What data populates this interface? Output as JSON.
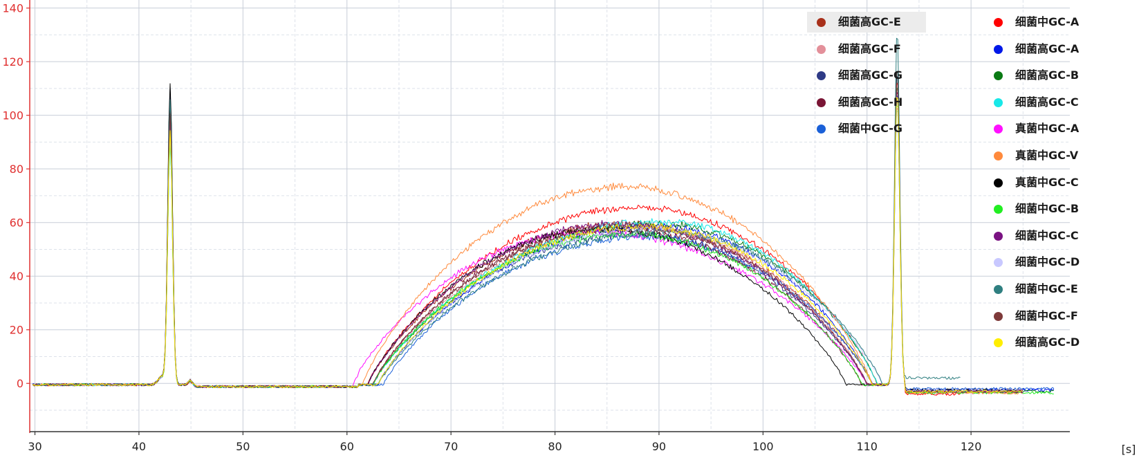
{
  "chart_data": {
    "type": "line",
    "xlabel": "[s]",
    "ylabel": "",
    "xlim": [
      29.5,
      129.5
    ],
    "ylim": [
      -18,
      143
    ],
    "x_ticks": [
      30,
      40,
      50,
      60,
      70,
      80,
      90,
      100,
      110,
      120
    ],
    "y_ticks": [
      0,
      20,
      40,
      60,
      80,
      100,
      120,
      140
    ],
    "grid": true,
    "legend_position": "top-right",
    "colors": {
      "y_axis": "#e03030",
      "x_axis": "#333333",
      "grid_major": "#c7cdd8",
      "grid_minor": "#dde2ea"
    },
    "series": [
      {
        "name": "细菌高GC-E",
        "color": "#a8301a",
        "peak1": 98,
        "peak2": 112,
        "plateau": 60,
        "center": 86.5,
        "onset": 62.0,
        "end": 110.5,
        "post": -3.0,
        "post_end": 125
      },
      {
        "name": "细菌高GC-F",
        "color": "#e3909a",
        "peak1": 95,
        "peak2": 110,
        "plateau": 59,
        "center": 88.0,
        "onset": 62.5,
        "end": 110.0,
        "post": -3.5,
        "post_end": 125
      },
      {
        "name": "细菌高GC-G",
        "color": "#2e3a86",
        "peak1": 110,
        "peak2": 118,
        "plateau": 56,
        "center": 87.5,
        "onset": 63.0,
        "end": 110.0,
        "post": -2.5,
        "post_end": 125
      },
      {
        "name": "细菌高GC-H",
        "color": "#7a1535",
        "peak1": 104,
        "peak2": 113,
        "plateau": 58,
        "center": 86.0,
        "onset": 62.5,
        "end": 109.5,
        "post": -3.0,
        "post_end": 125
      },
      {
        "name": "细菌中GC-G",
        "color": "#1a60d8",
        "peak1": 100,
        "peak2": 108,
        "plateau": 55,
        "center": 88.5,
        "onset": 63.5,
        "end": 110.5,
        "post": -2.0,
        "post_end": 128
      },
      {
        "name": "细菌中GC-A",
        "color": "#ff0000",
        "peak1": 103,
        "peak2": 115,
        "plateau": 66,
        "center": 88.0,
        "onset": 62.0,
        "end": 111.0,
        "post": -4.0,
        "post_end": 119
      },
      {
        "name": "细菌高GC-A",
        "color": "#0018e8",
        "peak1": 96,
        "peak2": 111,
        "plateau": 59,
        "center": 89.5,
        "onset": 63.0,
        "end": 110.5,
        "post": -2.5,
        "post_end": 128
      },
      {
        "name": "细菌高GC-B",
        "color": "#0a7a14",
        "peak1": 92,
        "peak2": 114,
        "plateau": 60,
        "center": 90.0,
        "onset": 62.5,
        "end": 111.0,
        "post": -3.0,
        "post_end": 128
      },
      {
        "name": "细菌高GC-C",
        "color": "#18e8e8",
        "peak1": 90,
        "peak2": 105,
        "plateau": 61,
        "center": 90.0,
        "onset": 62.5,
        "end": 111.0,
        "post": -3.0,
        "post_end": 125
      },
      {
        "name": "真菌中GC-A",
        "color": "#ff10ff",
        "peak1": 97,
        "peak2": 106,
        "plateau": 57,
        "center": 83.5,
        "onset": 60.5,
        "end": 110.0,
        "post": -3.0,
        "post_end": 125
      },
      {
        "name": "真菌中GC-V",
        "color": "#ff8a3c",
        "peak1": 94,
        "peak2": 109,
        "plateau": 74,
        "center": 86.5,
        "onset": 61.5,
        "end": 110.5,
        "post": -3.5,
        "post_end": 125
      },
      {
        "name": "真菌中GC-C",
        "color": "#000000",
        "peak1": 112,
        "peak2": 120,
        "plateau": 58,
        "center": 84.5,
        "onset": 62.0,
        "end": 108.0,
        "post": -2.5,
        "post_end": 125
      },
      {
        "name": "细菌中GC-B",
        "color": "#22ee22",
        "peak1": 91,
        "peak2": 107,
        "plateau": 56,
        "center": 87.0,
        "onset": 62.5,
        "end": 109.5,
        "post": -3.5,
        "post_end": 128
      },
      {
        "name": "细菌中GC-C",
        "color": "#7a1282",
        "peak1": 99,
        "peak2": 112,
        "plateau": 60,
        "center": 86.0,
        "onset": 62.0,
        "end": 110.0,
        "post": -3.0,
        "post_end": 125
      },
      {
        "name": "细菌中GC-D",
        "color": "#c8c8ff",
        "peak1": 93,
        "peak2": 108,
        "plateau": 58,
        "center": 89.0,
        "onset": 63.0,
        "end": 111.5,
        "post": -2.5,
        "post_end": 125
      },
      {
        "name": "细菌中GC-E",
        "color": "#2f7f80",
        "peak1": 106,
        "peak2": 133,
        "plateau": 57,
        "center": 90.5,
        "onset": 63.0,
        "end": 111.5,
        "post": 2.0,
        "post_end": 119
      },
      {
        "name": "细菌中GC-F",
        "color": "#7e3a3a",
        "peak1": 101,
        "peak2": 116,
        "plateau": 59,
        "center": 87.0,
        "onset": 62.5,
        "end": 110.0,
        "post": -3.0,
        "post_end": 125
      },
      {
        "name": "细菌高GC-D",
        "color": "#ffee00",
        "peak1": 95,
        "peak2": 110,
        "plateau": 59,
        "center": 88.5,
        "onset": 63.0,
        "end": 110.5,
        "post": -3.0,
        "post_end": 125
      }
    ]
  }
}
